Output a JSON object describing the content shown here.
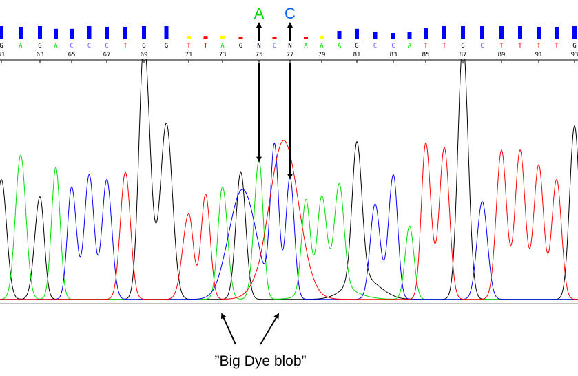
{
  "chart_data": {
    "type": "line",
    "subtype": "sequencing-chromatogram",
    "x_range": [
      61,
      93
    ],
    "x_ticks": [
      61,
      63,
      65,
      67,
      69,
      71,
      73,
      75,
      77,
      79,
      81,
      83,
      85,
      87,
      89,
      91,
      93
    ],
    "grid": false,
    "channel_colors": {
      "A": "#00e000",
      "C": "#0000ff",
      "G": "#000000",
      "T": "#ff0000",
      "N": "#000000"
    },
    "quality_colors": {
      "high": "#0000ff",
      "medium": "#ffff00",
      "low": "#ff0000"
    },
    "bases": [
      {
        "pos": 61,
        "call": "G",
        "quality": 1.0,
        "qclass": "high",
        "peak": 0.49
      },
      {
        "pos": 62,
        "call": "A",
        "quality": 0.95,
        "qclass": "high",
        "peak": 0.59
      },
      {
        "pos": 63,
        "call": "G",
        "quality": 1.0,
        "qclass": "high",
        "peak": 0.42
      },
      {
        "pos": 64,
        "call": "A",
        "quality": 0.8,
        "qclass": "high",
        "peak": 0.54
      },
      {
        "pos": 65,
        "call": "C",
        "quality": 0.8,
        "qclass": "high",
        "peak": 0.46
      },
      {
        "pos": 66,
        "call": "C",
        "quality": 1.0,
        "qclass": "high",
        "peak": 0.51
      },
      {
        "pos": 67,
        "call": "C",
        "quality": 0.95,
        "qclass": "high",
        "peak": 0.49
      },
      {
        "pos": 68,
        "call": "T",
        "quality": 0.95,
        "qclass": "high",
        "peak": 0.52
      },
      {
        "pos": 69,
        "call": "G",
        "quality": 1.0,
        "qclass": "high",
        "peak": 1.05
      },
      {
        "pos": 70,
        "call": "G",
        "quality": 1.0,
        "qclass": "high",
        "peak": 0.72
      },
      {
        "pos": 71,
        "call": "T",
        "quality": 0.25,
        "qclass": "medium",
        "peak": 0.35
      },
      {
        "pos": 72,
        "call": "T",
        "quality": 0.2,
        "qclass": "low",
        "peak": 0.43
      },
      {
        "pos": 73,
        "call": "A",
        "quality": 0.27,
        "qclass": "medium",
        "peak": 0.46
      },
      {
        "pos": 74,
        "call": "G",
        "quality": 0.16,
        "qclass": "low",
        "peak": 0.52
      },
      {
        "pos": 75,
        "call": "N",
        "quality": 0,
        "qclass": "none",
        "peak": 0.57,
        "peak_channel": "A"
      },
      {
        "pos": 76,
        "call": "C",
        "quality": 0.16,
        "qclass": "low",
        "peak": 0.62
      },
      {
        "pos": 77,
        "call": "N",
        "quality": 0,
        "qclass": "none",
        "peak": 0.5,
        "peak_channel": "C"
      },
      {
        "pos": 78,
        "call": "A",
        "quality": 0.16,
        "qclass": "low",
        "peak": 0.38
      },
      {
        "pos": 79,
        "call": "A",
        "quality": 0.27,
        "qclass": "medium",
        "peak": 0.36
      },
      {
        "pos": 80,
        "call": "A",
        "quality": 0.63,
        "qclass": "high",
        "peak": 0.41
      },
      {
        "pos": 81,
        "call": "G",
        "quality": 0.8,
        "qclass": "high",
        "peak": 0.56
      },
      {
        "pos": 82,
        "call": "C",
        "quality": 0.58,
        "qclass": "high",
        "peak": 0.39
      },
      {
        "pos": 83,
        "call": "C",
        "quality": 0.47,
        "qclass": "high",
        "peak": 0.51
      },
      {
        "pos": 84,
        "call": "A",
        "quality": 0.53,
        "qclass": "high",
        "peak": 0.3
      },
      {
        "pos": 85,
        "call": "T",
        "quality": 0.84,
        "qclass": "high",
        "peak": 0.64
      },
      {
        "pos": 86,
        "call": "T",
        "quality": 1.0,
        "qclass": "high",
        "peak": 0.62
      },
      {
        "pos": 87,
        "call": "G",
        "quality": 1.0,
        "qclass": "high",
        "peak": 1.05
      },
      {
        "pos": 88,
        "call": "C",
        "quality": 1.0,
        "qclass": "high",
        "peak": 0.4
      },
      {
        "pos": 89,
        "call": "T",
        "quality": 1.0,
        "qclass": "high",
        "peak": 0.61
      },
      {
        "pos": 90,
        "call": "T",
        "quality": 1.0,
        "qclass": "high",
        "peak": 0.61
      },
      {
        "pos": 91,
        "call": "T",
        "quality": 0.95,
        "qclass": "high",
        "peak": 0.55
      },
      {
        "pos": 92,
        "call": "T",
        "quality": 0.95,
        "qclass": "high",
        "peak": 0.49
      },
      {
        "pos": 93,
        "call": "G",
        "quality": 1.0,
        "qclass": "high",
        "peak": 0.71
      }
    ],
    "dye_blobs": [
      {
        "channel": "C",
        "center": 74.1,
        "height": 0.45,
        "width": 1.0
      },
      {
        "channel": "T",
        "center": 76.6,
        "height": 0.65,
        "width": 1.25
      },
      {
        "channel": "G",
        "center": 81.3,
        "height": 0.09,
        "width": 1.2
      },
      {
        "channel": "A",
        "center": 79.5,
        "height": 0.07,
        "width": 1.5
      }
    ],
    "annotations": {
      "corrected_calls": [
        {
          "pos": 75,
          "label": "A",
          "color": "#00e000"
        },
        {
          "pos": 77,
          "label": "C",
          "color": "#0066ff"
        }
      ],
      "caption": "”Big Dye blob”",
      "caption_targets": [
        73.0,
        76.2
      ]
    }
  }
}
